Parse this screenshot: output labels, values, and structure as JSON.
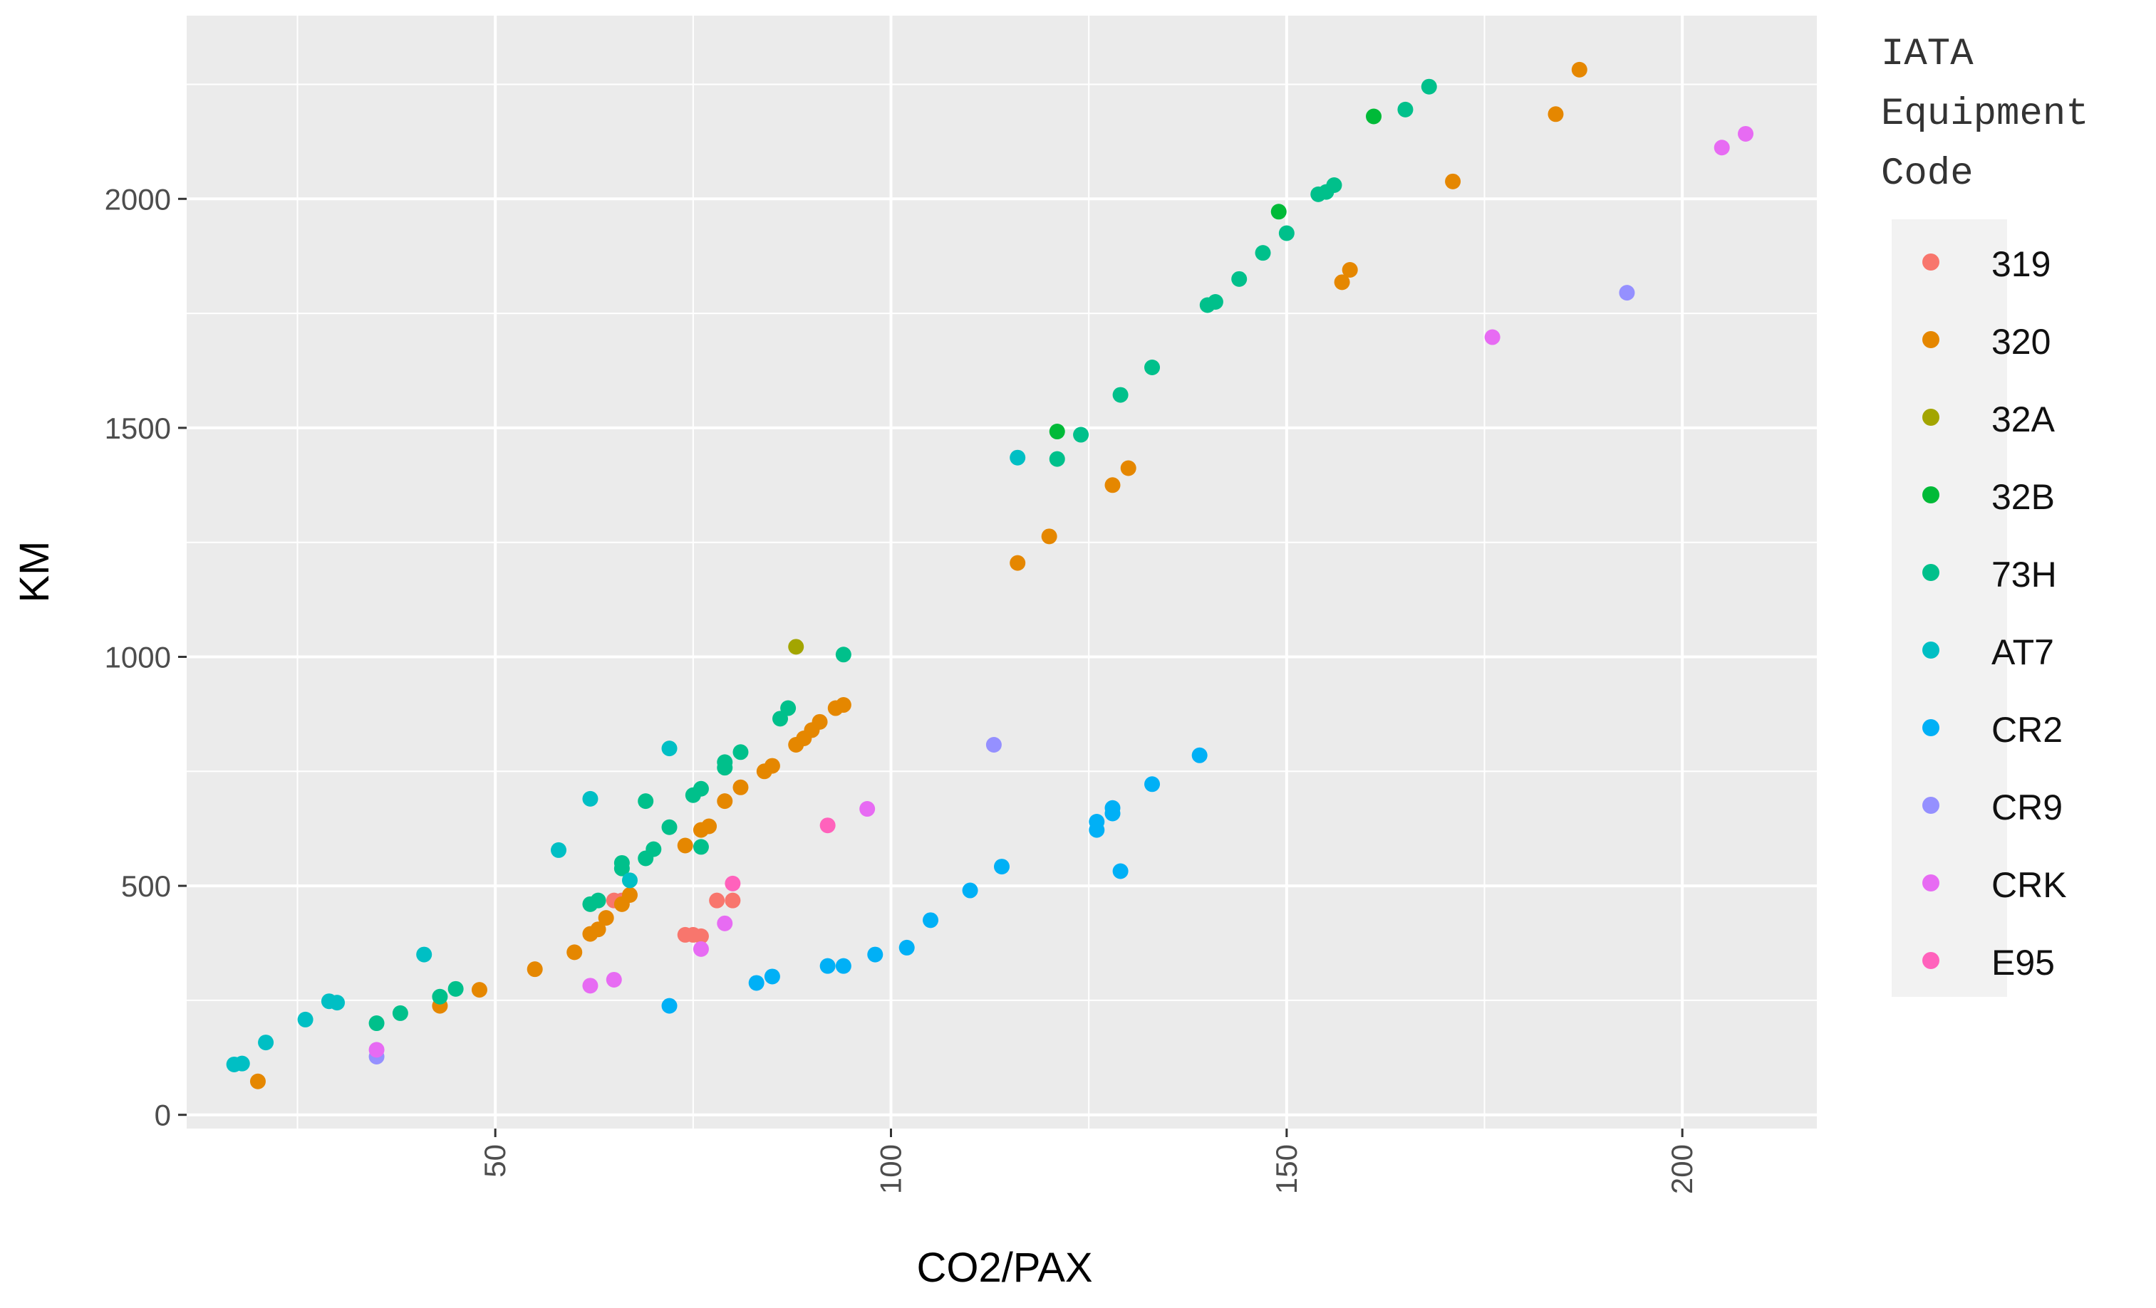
{
  "chart_data": {
    "type": "scatter",
    "title": "",
    "xlabel": "CO2/PAX",
    "ylabel": "KM",
    "xlim": [
      11,
      217
    ],
    "ylim": [
      -30,
      2400
    ],
    "x_ticks": [
      50,
      100,
      150,
      200
    ],
    "y_ticks": [
      0,
      500,
      1000,
      1500,
      2000
    ],
    "x_tick_labels": [
      "50",
      "100",
      "150",
      "200"
    ],
    "y_tick_labels": [
      "0",
      "500",
      "1000",
      "1500",
      "2000"
    ],
    "grid": true,
    "legend": {
      "title": "IATA Equipment Code",
      "placement": "right"
    },
    "series": [
      {
        "name": "319",
        "color": "#F8766D",
        "points": [
          [
            65,
            468
          ],
          [
            66,
            468
          ],
          [
            74,
            393
          ],
          [
            75,
            393
          ],
          [
            76,
            390
          ],
          [
            78,
            468
          ],
          [
            80,
            468
          ]
        ]
      },
      {
        "name": "320",
        "color": "#E58700",
        "points": [
          [
            20,
            73
          ],
          [
            43,
            238
          ],
          [
            48,
            273
          ],
          [
            55,
            318
          ],
          [
            60,
            355
          ],
          [
            62,
            395
          ],
          [
            63,
            405
          ],
          [
            64,
            430
          ],
          [
            66,
            460
          ],
          [
            67,
            480
          ],
          [
            74,
            588
          ],
          [
            76,
            622
          ],
          [
            77,
            630
          ],
          [
            79,
            685
          ],
          [
            81,
            715
          ],
          [
            84,
            750
          ],
          [
            85,
            762
          ],
          [
            88,
            808
          ],
          [
            89,
            822
          ],
          [
            90,
            840
          ],
          [
            91,
            858
          ],
          [
            93,
            888
          ],
          [
            94,
            895
          ],
          [
            116,
            1205
          ],
          [
            120,
            1263
          ],
          [
            128,
            1375
          ],
          [
            130,
            1412
          ],
          [
            157,
            1818
          ],
          [
            158,
            1845
          ],
          [
            171,
            2038
          ],
          [
            184,
            2185
          ],
          [
            187,
            2282
          ]
        ]
      },
      {
        "name": "32A",
        "color": "#A3A500",
        "points": [
          [
            88,
            1022
          ]
        ]
      },
      {
        "name": "32B",
        "color": "#00BA38",
        "points": [
          [
            121,
            1492
          ],
          [
            149,
            1972
          ],
          [
            161,
            2180
          ]
        ]
      },
      {
        "name": "73H",
        "color": "#00C08B",
        "points": [
          [
            35,
            200
          ],
          [
            38,
            222
          ],
          [
            43,
            258
          ],
          [
            45,
            275
          ],
          [
            62,
            460
          ],
          [
            63,
            468
          ],
          [
            66,
            538
          ],
          [
            66,
            550
          ],
          [
            69,
            685
          ],
          [
            69,
            560
          ],
          [
            70,
            580
          ],
          [
            72,
            628
          ],
          [
            75,
            698
          ],
          [
            76,
            712
          ],
          [
            76,
            585
          ],
          [
            79,
            758
          ],
          [
            79,
            770
          ],
          [
            81,
            792
          ],
          [
            86,
            865
          ],
          [
            87,
            888
          ],
          [
            94,
            1005
          ],
          [
            121,
            1432
          ],
          [
            124,
            1485
          ],
          [
            129,
            1572
          ],
          [
            133,
            1632
          ],
          [
            140,
            1768
          ],
          [
            141,
            1775
          ],
          [
            144,
            1825
          ],
          [
            147,
            1882
          ],
          [
            150,
            1925
          ],
          [
            154,
            2010
          ],
          [
            155,
            2015
          ],
          [
            156,
            2030
          ],
          [
            165,
            2195
          ],
          [
            168,
            2245
          ]
        ]
      },
      {
        "name": "AT7",
        "color": "#00BFC4",
        "points": [
          [
            17,
            110
          ],
          [
            18,
            112
          ],
          [
            21,
            158
          ],
          [
            26,
            208
          ],
          [
            29,
            248
          ],
          [
            30,
            245
          ],
          [
            41,
            350
          ],
          [
            58,
            578
          ],
          [
            62,
            690
          ],
          [
            67,
            512
          ],
          [
            72,
            800
          ],
          [
            116,
            1435
          ]
        ]
      },
      {
        "name": "CR2",
        "color": "#00B0F6",
        "points": [
          [
            72,
            238
          ],
          [
            83,
            288
          ],
          [
            85,
            302
          ],
          [
            92,
            325
          ],
          [
            94,
            325
          ],
          [
            98,
            350
          ],
          [
            102,
            365
          ],
          [
            105,
            425
          ],
          [
            110,
            490
          ],
          [
            114,
            542
          ],
          [
            126,
            622
          ],
          [
            126,
            640
          ],
          [
            128,
            658
          ],
          [
            128,
            670
          ],
          [
            129,
            532
          ],
          [
            133,
            722
          ],
          [
            139,
            785
          ]
        ]
      },
      {
        "name": "CR9",
        "color": "#9590FF",
        "points": [
          [
            35,
            127
          ],
          [
            113,
            808
          ],
          [
            193,
            1795
          ]
        ]
      },
      {
        "name": "CRK",
        "color": "#E76BF3",
        "points": [
          [
            35,
            142
          ],
          [
            62,
            282
          ],
          [
            65,
            295
          ],
          [
            76,
            362
          ],
          [
            79,
            418
          ],
          [
            97,
            668
          ],
          [
            176,
            1698
          ],
          [
            205,
            2112
          ],
          [
            208,
            2142
          ]
        ]
      },
      {
        "name": "E95",
        "color": "#FF62BC",
        "points": [
          [
            80,
            505
          ],
          [
            92,
            632
          ]
        ]
      }
    ]
  }
}
